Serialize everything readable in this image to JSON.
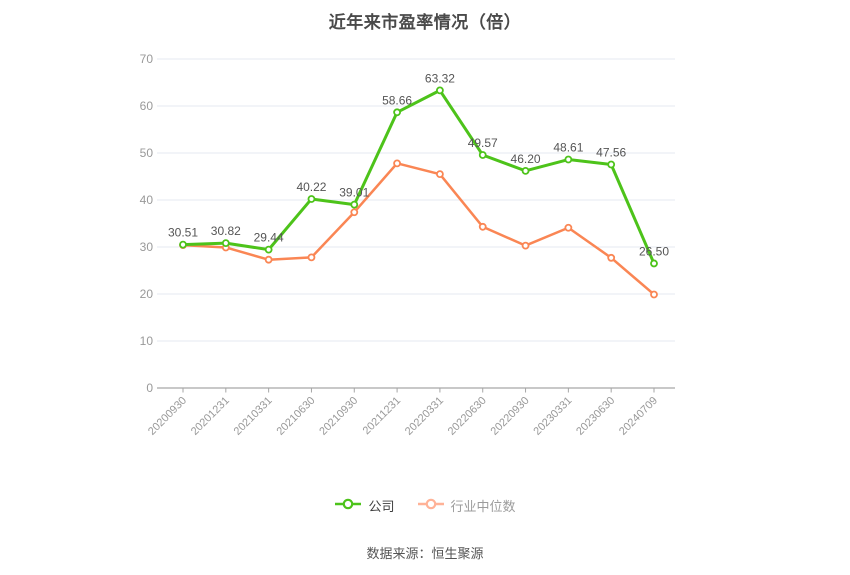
{
  "page": {
    "title": "近年来市盈率情况（倍）",
    "source_note": "数据来源：恒生聚源"
  },
  "chart_data": {
    "type": "line",
    "title": "近年来市盈率情况（倍）",
    "categories": [
      "20200930",
      "20201231",
      "20210331",
      "20210630",
      "20210930",
      "20211231",
      "20220331",
      "20220630",
      "20220930",
      "20230331",
      "20230630",
      "20240709"
    ],
    "series": [
      {
        "name": "公司",
        "color": "#4dc31a",
        "values": [
          30.51,
          30.82,
          29.44,
          40.22,
          39.01,
          58.66,
          63.32,
          49.57,
          46.2,
          48.61,
          47.56,
          26.5
        ],
        "show_labels": true,
        "label_color": "#555555",
        "line_width": 3
      },
      {
        "name": "行业中位数",
        "color": "#fa8654",
        "values": [
          30.4,
          29.9,
          27.3,
          27.8,
          37.4,
          47.8,
          45.5,
          34.3,
          30.3,
          34.1,
          27.7,
          19.9
        ],
        "show_labels": false,
        "label_color": "#555555",
        "line_width": 2.5
      }
    ],
    "ylim": [
      0,
      70
    ],
    "y_ticks": [
      0,
      10,
      20,
      30,
      40,
      50,
      60,
      70
    ],
    "grid": true,
    "legend_position": "bottom",
    "colors": {
      "gridline": "#e4e8f1",
      "axis_line": "#a6a6a6",
      "axis_label": "#999999",
      "marker_fill": "#ffffff"
    }
  },
  "legend": {
    "items": [
      {
        "label": "公司",
        "icon_color": "#4dc31a",
        "text_color": "#3f3f3f"
      },
      {
        "label": "行业中位数",
        "icon_color": "#ffb297",
        "text_color": "#9c9c9c"
      }
    ]
  }
}
